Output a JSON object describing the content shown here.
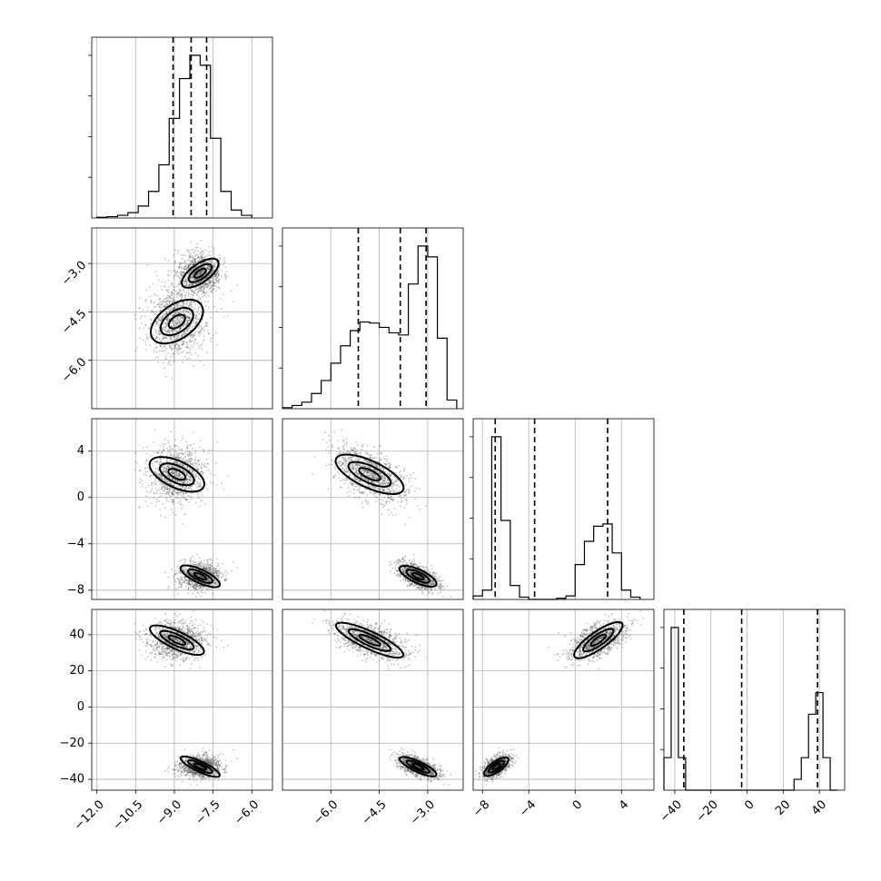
{
  "chart_data": {
    "type": "scatter",
    "title": "",
    "dimensions": [
      {
        "key": "p0",
        "ticks": [
          -12.0,
          -10.5,
          -9.0,
          -7.5,
          -6.0
        ],
        "tick_labels": [
          "−12.0",
          "−10.5",
          "−9.0",
          "−7.5",
          "−6.0"
        ],
        "range": [
          -12.2,
          -5.2
        ],
        "quantiles": [
          -9.05,
          -8.35,
          -7.75
        ]
      },
      {
        "key": "p1",
        "ticks": [
          -6.0,
          -4.5,
          -3.0
        ],
        "tick_labels": [
          "−6.0",
          "−4.5",
          "−3.0"
        ],
        "range": [
          -7.5,
          -1.9
        ],
        "quantiles": [
          -5.15,
          -3.85,
          -3.05
        ]
      },
      {
        "key": "p2",
        "ticks": [
          -8,
          -4,
          0,
          4
        ],
        "tick_labels": [
          "−8",
          "−4",
          "0",
          "4"
        ],
        "range": [
          -8.8,
          6.8
        ],
        "quantiles": [
          -6.9,
          -3.5,
          2.8
        ]
      },
      {
        "key": "p3",
        "ticks": [
          -40,
          -20,
          0,
          20,
          40
        ],
        "tick_labels": [
          "−40",
          "−20",
          "0",
          "20",
          "40"
        ],
        "range": [
          -46,
          54
        ],
        "quantiles": [
          -35,
          -3,
          39
        ]
      }
    ],
    "histograms": [
      {
        "dimension": "p0",
        "bin_edges": [
          -12.0,
          -11.6,
          -11.2,
          -10.8,
          -10.4,
          -10.0,
          -9.6,
          -9.2,
          -8.8,
          -8.4,
          -8.0,
          -7.6,
          -7.2,
          -6.8,
          -6.4,
          -6.0
        ],
        "counts": [
          1,
          2,
          4,
          8,
          18,
          40,
          80,
          150,
          210,
          245,
          230,
          120,
          40,
          12,
          4
        ]
      },
      {
        "dimension": "p1",
        "bin_edges": [
          -7.5,
          -7.2,
          -6.9,
          -6.6,
          -6.3,
          -6.0,
          -5.7,
          -5.4,
          -5.1,
          -4.8,
          -4.5,
          -4.2,
          -3.9,
          -3.6,
          -3.3,
          -3.0,
          -2.7,
          -2.4,
          -2.1
        ],
        "counts": [
          1,
          3,
          6,
          14,
          26,
          42,
          58,
          72,
          80,
          79,
          75,
          70,
          68,
          115,
          150,
          140,
          65,
          8
        ]
      },
      {
        "dimension": "p2",
        "bin_edges": [
          -8.8,
          -8.0,
          -7.2,
          -6.4,
          -5.6,
          -4.8,
          -4.0,
          -3.2,
          -2.4,
          -1.6,
          -0.8,
          0.0,
          0.8,
          1.6,
          2.4,
          3.2,
          4.0,
          4.8,
          5.6
        ],
        "counts": [
          3,
          8,
          140,
          68,
          12,
          2,
          0,
          0,
          0,
          1,
          3,
          30,
          50,
          63,
          65,
          40,
          8,
          2
        ]
      },
      {
        "dimension": "p3",
        "bin_edges": [
          -46,
          -42,
          -38,
          -34,
          -30,
          -26,
          -22,
          -18,
          -14,
          -10,
          -6,
          -2,
          2,
          6,
          10,
          14,
          18,
          22,
          26,
          30,
          34,
          38,
          42,
          46,
          50
        ],
        "counts": [
          30,
          150,
          30,
          0,
          0,
          0,
          0,
          0,
          0,
          0,
          0,
          0,
          0,
          0,
          0,
          0,
          0,
          0,
          10,
          30,
          70,
          90,
          30,
          0
        ]
      }
    ],
    "modes": [
      {
        "center": [
          -8.9,
          -4.8,
          2.0,
          37
        ],
        "spread": [
          0.55,
          0.55,
          1.2,
          5
        ],
        "weight": 0.5
      },
      {
        "center": [
          -8.0,
          -3.3,
          -6.8,
          -33
        ],
        "spread": [
          0.4,
          0.3,
          0.6,
          3
        ],
        "weight": 0.5
      }
    ],
    "grid": true
  }
}
